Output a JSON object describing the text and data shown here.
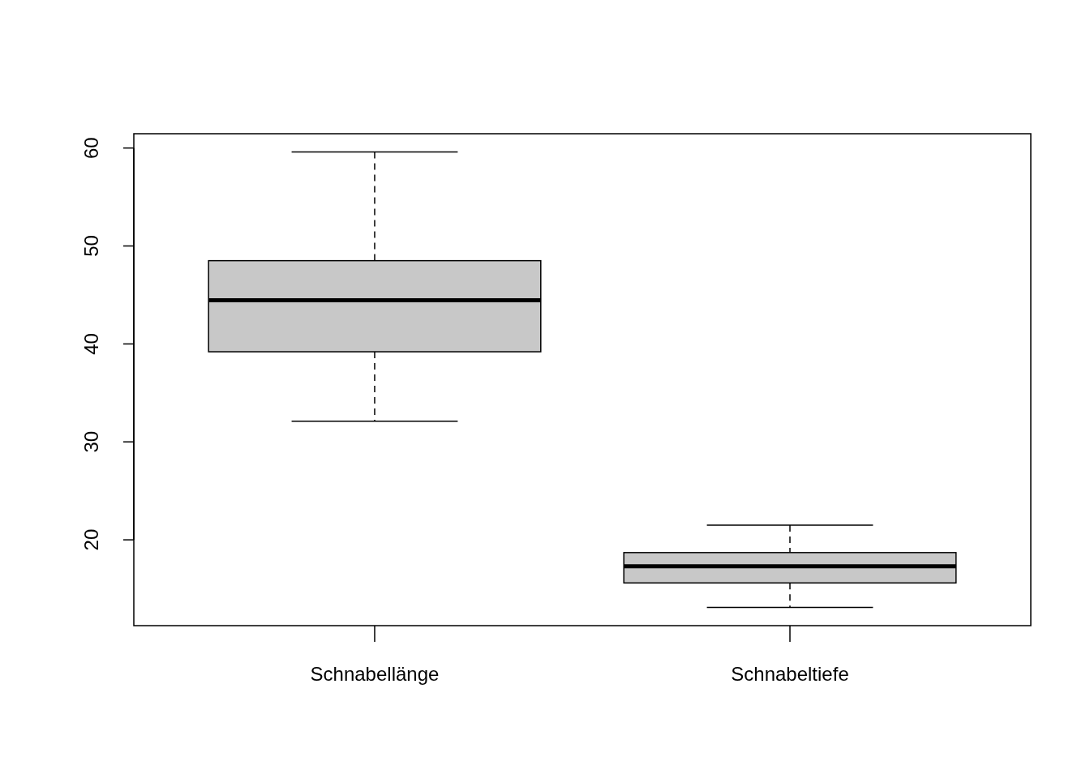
{
  "chart_data": {
    "type": "box",
    "categories": [
      "Schnabellänge",
      "Schnabeltiefe"
    ],
    "boxes": [
      {
        "low": 32.1,
        "q1": 39.2,
        "median": 44.45,
        "q3": 48.5,
        "high": 59.6
      },
      {
        "low": 13.1,
        "q1": 15.6,
        "median": 17.3,
        "q3": 18.7,
        "high": 21.5
      }
    ],
    "color": "#c8c8c8",
    "ylim": [
      11.24,
      61.46
    ],
    "yticks": [
      20,
      30,
      40,
      50,
      60
    ],
    "grid": false
  }
}
